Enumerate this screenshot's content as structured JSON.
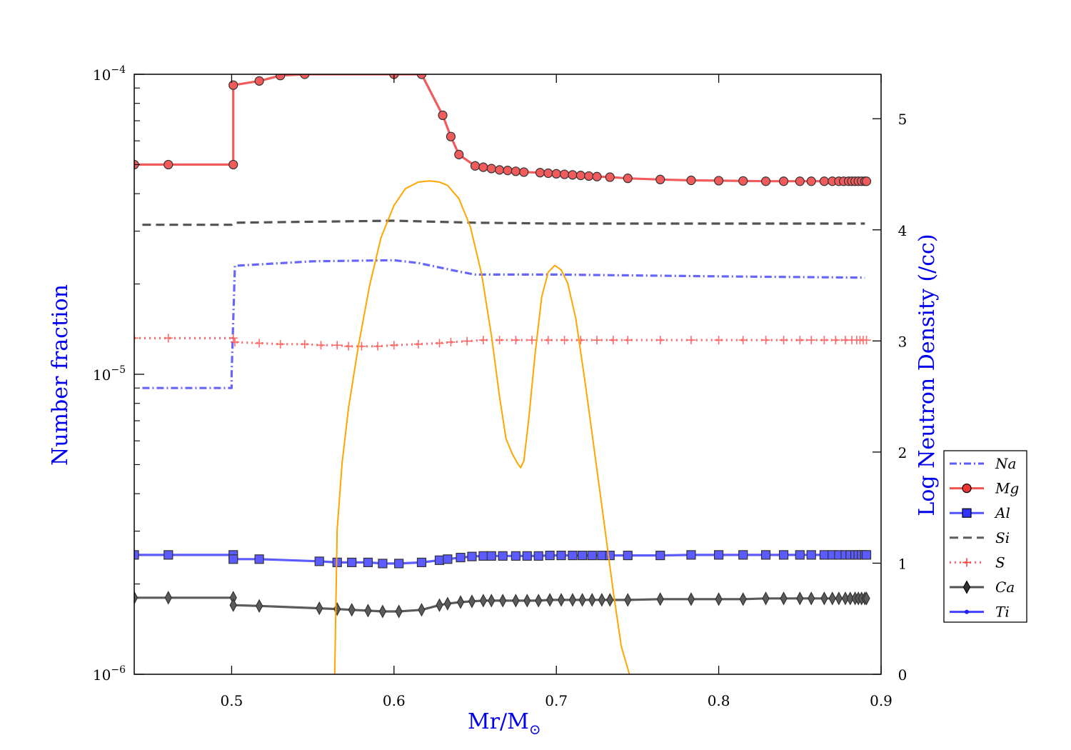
{
  "chart_data": {
    "type": "line",
    "xlabel": "Mr/M",
    "xlabel_symbol": "⊙",
    "ylabel_left": "Number fraction",
    "ylabel_right": "Log Neutron Density (/cc)",
    "xlim": [
      0.44,
      0.9
    ],
    "ylim_left": [
      1e-06,
      0.0001
    ],
    "yscale_left": "log",
    "ylim_right": [
      0,
      5.4
    ],
    "x_ticks": [
      "0.5",
      "0.6",
      "0.7",
      "0.8",
      "0.9"
    ],
    "y_left_ticks": [
      {
        "base": "10",
        "exp": "−4"
      },
      {
        "base": "10",
        "exp": "−5"
      },
      {
        "base": "10",
        "exp": "−6"
      }
    ],
    "y_right_ticks": [
      "0",
      "1",
      "2",
      "3",
      "4",
      "5"
    ],
    "legend_position": "right",
    "legend": [
      {
        "label": "Na",
        "color": "#4040ff",
        "style": "dashdot",
        "marker": "none"
      },
      {
        "label": "Mg",
        "color": "#ee3333",
        "style": "solid",
        "marker": "circle"
      },
      {
        "label": "Al",
        "color": "#3333ff",
        "style": "solid",
        "marker": "square"
      },
      {
        "label": "Si",
        "color": "#404040",
        "style": "dashed",
        "marker": "none"
      },
      {
        "label": "S",
        "color": "#ff4444",
        "style": "dotted",
        "marker": "plus"
      },
      {
        "label": "Ca",
        "color": "#333333",
        "style": "solid",
        "marker": "diamond"
      },
      {
        "label": "Ti",
        "color": "#2020ff",
        "style": "solid",
        "marker": "dot"
      }
    ],
    "series": [
      {
        "name": "Na",
        "axis": "left",
        "color": "#4040ff",
        "style": "dashdot",
        "marker": "none",
        "opacity": 0.8,
        "x": [
          0.445,
          0.5,
          0.5,
          0.502,
          0.55,
          0.6,
          0.615,
          0.64,
          0.65,
          0.7,
          0.8,
          0.89
        ],
        "y": [
          9e-06,
          9e-06,
          1e-05,
          2.3e-05,
          2.38e-05,
          2.4e-05,
          2.35e-05,
          2.2e-05,
          2.15e-05,
          2.15e-05,
          2.12e-05,
          2.1e-05
        ]
      },
      {
        "name": "Mg",
        "axis": "left",
        "color": "#ee3333",
        "style": "solid",
        "marker": "circle",
        "opacity": 0.8,
        "x": [
          0.44,
          0.461,
          0.501,
          0.501,
          0.517,
          0.53,
          0.545,
          0.6,
          0.617,
          0.63,
          0.635,
          0.64,
          0.65,
          0.655,
          0.66,
          0.665,
          0.67,
          0.675,
          0.68,
          0.69,
          0.695,
          0.7,
          0.705,
          0.71,
          0.715,
          0.72,
          0.725,
          0.733,
          0.744,
          0.764,
          0.783,
          0.8,
          0.815,
          0.829,
          0.84,
          0.85,
          0.857,
          0.865,
          0.87,
          0.874,
          0.877,
          0.88,
          0.882,
          0.884,
          0.886,
          0.888,
          0.89,
          0.891
        ],
        "y": [
          5e-05,
          5e-05,
          5e-05,
          9.2e-05,
          9.5e-05,
          9.9e-05,
          0.0001,
          0.0001,
          0.0001,
          7.3e-05,
          6.2e-05,
          5.4e-05,
          4.95e-05,
          4.9e-05,
          4.85e-05,
          4.8e-05,
          4.78e-05,
          4.75e-05,
          4.72e-05,
          4.7e-05,
          4.68e-05,
          4.66e-05,
          4.64e-05,
          4.62e-05,
          4.6e-05,
          4.58e-05,
          4.56e-05,
          4.54e-05,
          4.5e-05,
          4.46e-05,
          4.43e-05,
          4.42e-05,
          4.41e-05,
          4.4e-05,
          4.4e-05,
          4.4e-05,
          4.4e-05,
          4.4e-05,
          4.4e-05,
          4.4e-05,
          4.4e-05,
          4.4e-05,
          4.4e-05,
          4.4e-05,
          4.4e-05,
          4.4e-05,
          4.4e-05,
          4.4e-05
        ]
      },
      {
        "name": "Si",
        "axis": "left",
        "color": "#404040",
        "style": "dashed",
        "marker": "none",
        "opacity": 0.9,
        "x": [
          0.445,
          0.5,
          0.502,
          0.6,
          0.65,
          0.7,
          0.8,
          0.89
        ],
        "y": [
          3.15e-05,
          3.15e-05,
          3.2e-05,
          3.25e-05,
          3.2e-05,
          3.18e-05,
          3.18e-05,
          3.18e-05
        ]
      },
      {
        "name": "S",
        "axis": "left",
        "color": "#ff4444",
        "style": "dotted",
        "marker": "plus",
        "opacity": 0.8,
        "x": [
          0.44,
          0.461,
          0.501,
          0.502,
          0.517,
          0.53,
          0.545,
          0.555,
          0.565,
          0.572,
          0.58,
          0.59,
          0.6,
          0.615,
          0.628,
          0.635,
          0.645,
          0.655,
          0.665,
          0.675,
          0.685,
          0.695,
          0.705,
          0.715,
          0.725,
          0.735,
          0.744,
          0.764,
          0.783,
          0.8,
          0.815,
          0.829,
          0.84,
          0.85,
          0.857,
          0.865,
          0.872,
          0.878,
          0.882,
          0.885,
          0.887,
          0.889,
          0.891
        ],
        "y": [
          1.32e-05,
          1.32e-05,
          1.32e-05,
          1.28e-05,
          1.27e-05,
          1.26e-05,
          1.26e-05,
          1.25e-05,
          1.25e-05,
          1.24e-05,
          1.24e-05,
          1.24e-05,
          1.25e-05,
          1.26e-05,
          1.27e-05,
          1.28e-05,
          1.29e-05,
          1.3e-05,
          1.3e-05,
          1.3e-05,
          1.3e-05,
          1.3e-05,
          1.3e-05,
          1.3e-05,
          1.3e-05,
          1.3e-05,
          1.3e-05,
          1.3e-05,
          1.3e-05,
          1.3e-05,
          1.3e-05,
          1.3e-05,
          1.3e-05,
          1.3e-05,
          1.3e-05,
          1.3e-05,
          1.3e-05,
          1.3e-05,
          1.3e-05,
          1.3e-05,
          1.3e-05,
          1.3e-05,
          1.3e-05
        ]
      },
      {
        "name": "Al",
        "axis": "left",
        "color": "#3333ff",
        "style": "solid",
        "marker": "square",
        "opacity": 0.8,
        "x": [
          0.44,
          0.461,
          0.501,
          0.501,
          0.517,
          0.554,
          0.565,
          0.574,
          0.584,
          0.593,
          0.603,
          0.617,
          0.628,
          0.633,
          0.641,
          0.648,
          0.655,
          0.66,
          0.667,
          0.675,
          0.682,
          0.689,
          0.696,
          0.703,
          0.71,
          0.716,
          0.722,
          0.728,
          0.733,
          0.744,
          0.764,
          0.783,
          0.8,
          0.815,
          0.829,
          0.84,
          0.85,
          0.857,
          0.865,
          0.87,
          0.874,
          0.878,
          0.881,
          0.884,
          0.886,
          0.888,
          0.89,
          0.891
        ],
        "y": [
          2.5e-06,
          2.5e-06,
          2.5e-06,
          2.42e-06,
          2.42e-06,
          2.38e-06,
          2.36e-06,
          2.36e-06,
          2.36e-06,
          2.34e-06,
          2.34e-06,
          2.36e-06,
          2.4e-06,
          2.42e-06,
          2.45e-06,
          2.47e-06,
          2.48e-06,
          2.48e-06,
          2.48e-06,
          2.48e-06,
          2.48e-06,
          2.48e-06,
          2.49e-06,
          2.49e-06,
          2.49e-06,
          2.49e-06,
          2.49e-06,
          2.49e-06,
          2.49e-06,
          2.49e-06,
          2.49e-06,
          2.5e-06,
          2.5e-06,
          2.5e-06,
          2.5e-06,
          2.5e-06,
          2.5e-06,
          2.5e-06,
          2.5e-06,
          2.5e-06,
          2.5e-06,
          2.5e-06,
          2.5e-06,
          2.5e-06,
          2.5e-06,
          2.5e-06,
          2.5e-06,
          2.5e-06
        ]
      },
      {
        "name": "Ca",
        "axis": "left",
        "color": "#333333",
        "style": "solid",
        "marker": "diamond",
        "opacity": 0.8,
        "x": [
          0.44,
          0.461,
          0.501,
          0.501,
          0.517,
          0.554,
          0.565,
          0.574,
          0.584,
          0.593,
          0.603,
          0.617,
          0.628,
          0.633,
          0.641,
          0.648,
          0.655,
          0.66,
          0.667,
          0.675,
          0.682,
          0.689,
          0.696,
          0.703,
          0.71,
          0.716,
          0.722,
          0.728,
          0.733,
          0.744,
          0.764,
          0.783,
          0.8,
          0.815,
          0.829,
          0.84,
          0.85,
          0.857,
          0.865,
          0.87,
          0.874,
          0.878,
          0.881,
          0.884,
          0.886,
          0.888,
          0.89,
          0.891
        ],
        "y": [
          1.8e-06,
          1.8e-06,
          1.8e-06,
          1.7e-06,
          1.69e-06,
          1.66e-06,
          1.65e-06,
          1.64e-06,
          1.63e-06,
          1.62e-06,
          1.62e-06,
          1.64e-06,
          1.7e-06,
          1.72e-06,
          1.74e-06,
          1.75e-06,
          1.76e-06,
          1.76e-06,
          1.76e-06,
          1.76e-06,
          1.76e-06,
          1.76e-06,
          1.77e-06,
          1.77e-06,
          1.77e-06,
          1.77e-06,
          1.77e-06,
          1.77e-06,
          1.77e-06,
          1.77e-06,
          1.78e-06,
          1.78e-06,
          1.78e-06,
          1.78e-06,
          1.79e-06,
          1.79e-06,
          1.79e-06,
          1.79e-06,
          1.79e-06,
          1.79e-06,
          1.79e-06,
          1.79e-06,
          1.79e-06,
          1.79e-06,
          1.79e-06,
          1.79e-06,
          1.79e-06,
          1.79e-06
        ]
      },
      {
        "name": "Log Neutron Density",
        "axis": "right",
        "color": "#ffa500",
        "style": "solid",
        "marker": "none",
        "opacity": 1,
        "x": [
          0.5635,
          0.565,
          0.568,
          0.572,
          0.578,
          0.585,
          0.592,
          0.6,
          0.607,
          0.615,
          0.622,
          0.628,
          0.633,
          0.64,
          0.647,
          0.654,
          0.66,
          0.665,
          0.669,
          0.673,
          0.676,
          0.678,
          0.68,
          0.683,
          0.687,
          0.691,
          0.695,
          0.699,
          0.703,
          0.707,
          0.712,
          0.718,
          0.724,
          0.73,
          0.735,
          0.74,
          0.745
        ],
        "y": [
          0.0,
          1.3,
          1.9,
          2.4,
          2.95,
          3.5,
          3.93,
          4.22,
          4.37,
          4.43,
          4.44,
          4.43,
          4.4,
          4.28,
          4.03,
          3.6,
          3.05,
          2.5,
          2.12,
          1.98,
          1.9,
          1.86,
          1.92,
          2.3,
          2.9,
          3.4,
          3.62,
          3.68,
          3.64,
          3.52,
          3.2,
          2.6,
          1.95,
          1.3,
          0.75,
          0.25,
          0.0
        ]
      }
    ]
  }
}
